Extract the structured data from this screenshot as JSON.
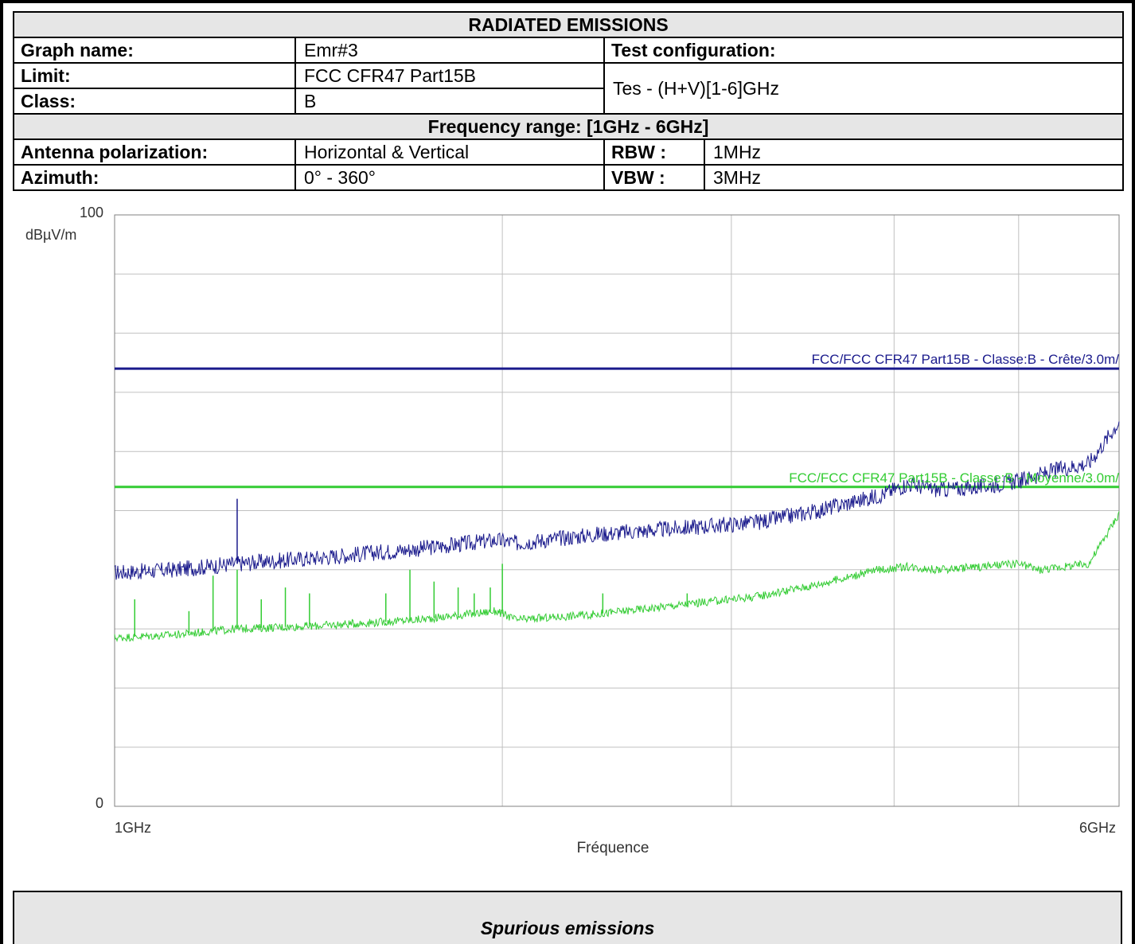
{
  "header": {
    "title": "RADIATED EMISSIONS",
    "graph_name_label": "Graph name:",
    "graph_name": "Emr#3",
    "test_config_label": "Test configuration:",
    "limit_label": "Limit:",
    "limit": "FCC CFR47 Part15B",
    "test_config": "Tes - (H+V)[1-6]GHz",
    "class_label": "Class:",
    "class": "B",
    "freq_range": "Frequency range:  [1GHz - 6GHz]",
    "antenna_label": "Antenna polarization:",
    "antenna": "Horizontal & Vertical",
    "rbw_label": "RBW :",
    "rbw": "1MHz",
    "azimuth_label": "Azimuth:",
    "azimuth": "0° - 360°",
    "vbw_label": "VBW :",
    "vbw": "3MHz"
  },
  "footer": {
    "label": "Spurious emissions"
  },
  "colors": {
    "peak": "#1a1a8c",
    "avg": "#33cc33",
    "grid": "#c0c0c0"
  },
  "chart_data": {
    "type": "line",
    "ylabel": "dBµV/m",
    "xlabel": "Fréquence",
    "ylim": [
      0,
      100
    ],
    "xlim": [
      1,
      6
    ],
    "x_unit": "GHz",
    "y_tick_labels": [
      "100",
      "0"
    ],
    "x_tick_labels": [
      "1GHz",
      "6GHz"
    ],
    "x_gridlines": [
      2.93,
      4.07,
      4.88,
      5.5
    ],
    "y_gridlines": [
      10,
      20,
      30,
      40,
      50,
      60,
      70,
      80,
      90
    ],
    "grid": true,
    "limits": [
      {
        "name": "FCC/FCC CFR47 Part15B - Classe:B - Crête/3.0m/",
        "value": 74,
        "color": "#1a1a8c"
      },
      {
        "name": "FCC/FCC CFR47 Part15B - Classe:B - Moyenne/3.0m/",
        "value": 54,
        "color": "#33cc33"
      }
    ],
    "series": [
      {
        "color": "#1a1a8c",
        "x": [
          1.0,
          1.3,
          1.6,
          2.0,
          2.5,
          2.9,
          3.0,
          3.4,
          3.8,
          4.2,
          4.5,
          4.8,
          4.95,
          5.1,
          5.3,
          5.5,
          5.7,
          5.85,
          6.0
        ],
        "y": [
          39.5,
          40,
          41,
          42,
          43.5,
          45,
          44.5,
          46,
          47,
          48,
          50,
          52.5,
          54.5,
          53.5,
          54,
          55,
          57,
          58,
          65
        ]
      },
      {
        "color": "#33cc33",
        "x": [
          1.0,
          1.3,
          1.6,
          2.0,
          2.5,
          2.9,
          3.0,
          3.4,
          3.8,
          4.2,
          4.5,
          4.8,
          4.95,
          5.1,
          5.3,
          5.5,
          5.6,
          5.85,
          6.0
        ],
        "y": [
          28.5,
          29,
          30,
          30.5,
          31.5,
          33,
          31.5,
          32.5,
          34,
          35.5,
          37.5,
          40,
          40.5,
          40,
          40.5,
          41,
          40,
          41,
          49.5
        ]
      }
    ],
    "spikes": [
      {
        "color": "#1a1a8c",
        "x": 1.61,
        "y": 52
      },
      {
        "color": "#33cc33",
        "x": 1.1,
        "y": 35
      },
      {
        "color": "#33cc33",
        "x": 1.37,
        "y": 33
      },
      {
        "color": "#33cc33",
        "x": 1.49,
        "y": 39
      },
      {
        "color": "#33cc33",
        "x": 1.61,
        "y": 40
      },
      {
        "color": "#33cc33",
        "x": 1.73,
        "y": 35
      },
      {
        "color": "#33cc33",
        "x": 1.85,
        "y": 37
      },
      {
        "color": "#33cc33",
        "x": 1.97,
        "y": 36
      },
      {
        "color": "#33cc33",
        "x": 2.35,
        "y": 36
      },
      {
        "color": "#33cc33",
        "x": 2.47,
        "y": 40
      },
      {
        "color": "#33cc33",
        "x": 2.59,
        "y": 38
      },
      {
        "color": "#33cc33",
        "x": 2.71,
        "y": 37
      },
      {
        "color": "#33cc33",
        "x": 2.79,
        "y": 36
      },
      {
        "color": "#33cc33",
        "x": 2.87,
        "y": 37
      },
      {
        "color": "#33cc33",
        "x": 2.93,
        "y": 41
      },
      {
        "color": "#33cc33",
        "x": 3.43,
        "y": 36
      },
      {
        "color": "#33cc33",
        "x": 3.85,
        "y": 36
      }
    ]
  }
}
